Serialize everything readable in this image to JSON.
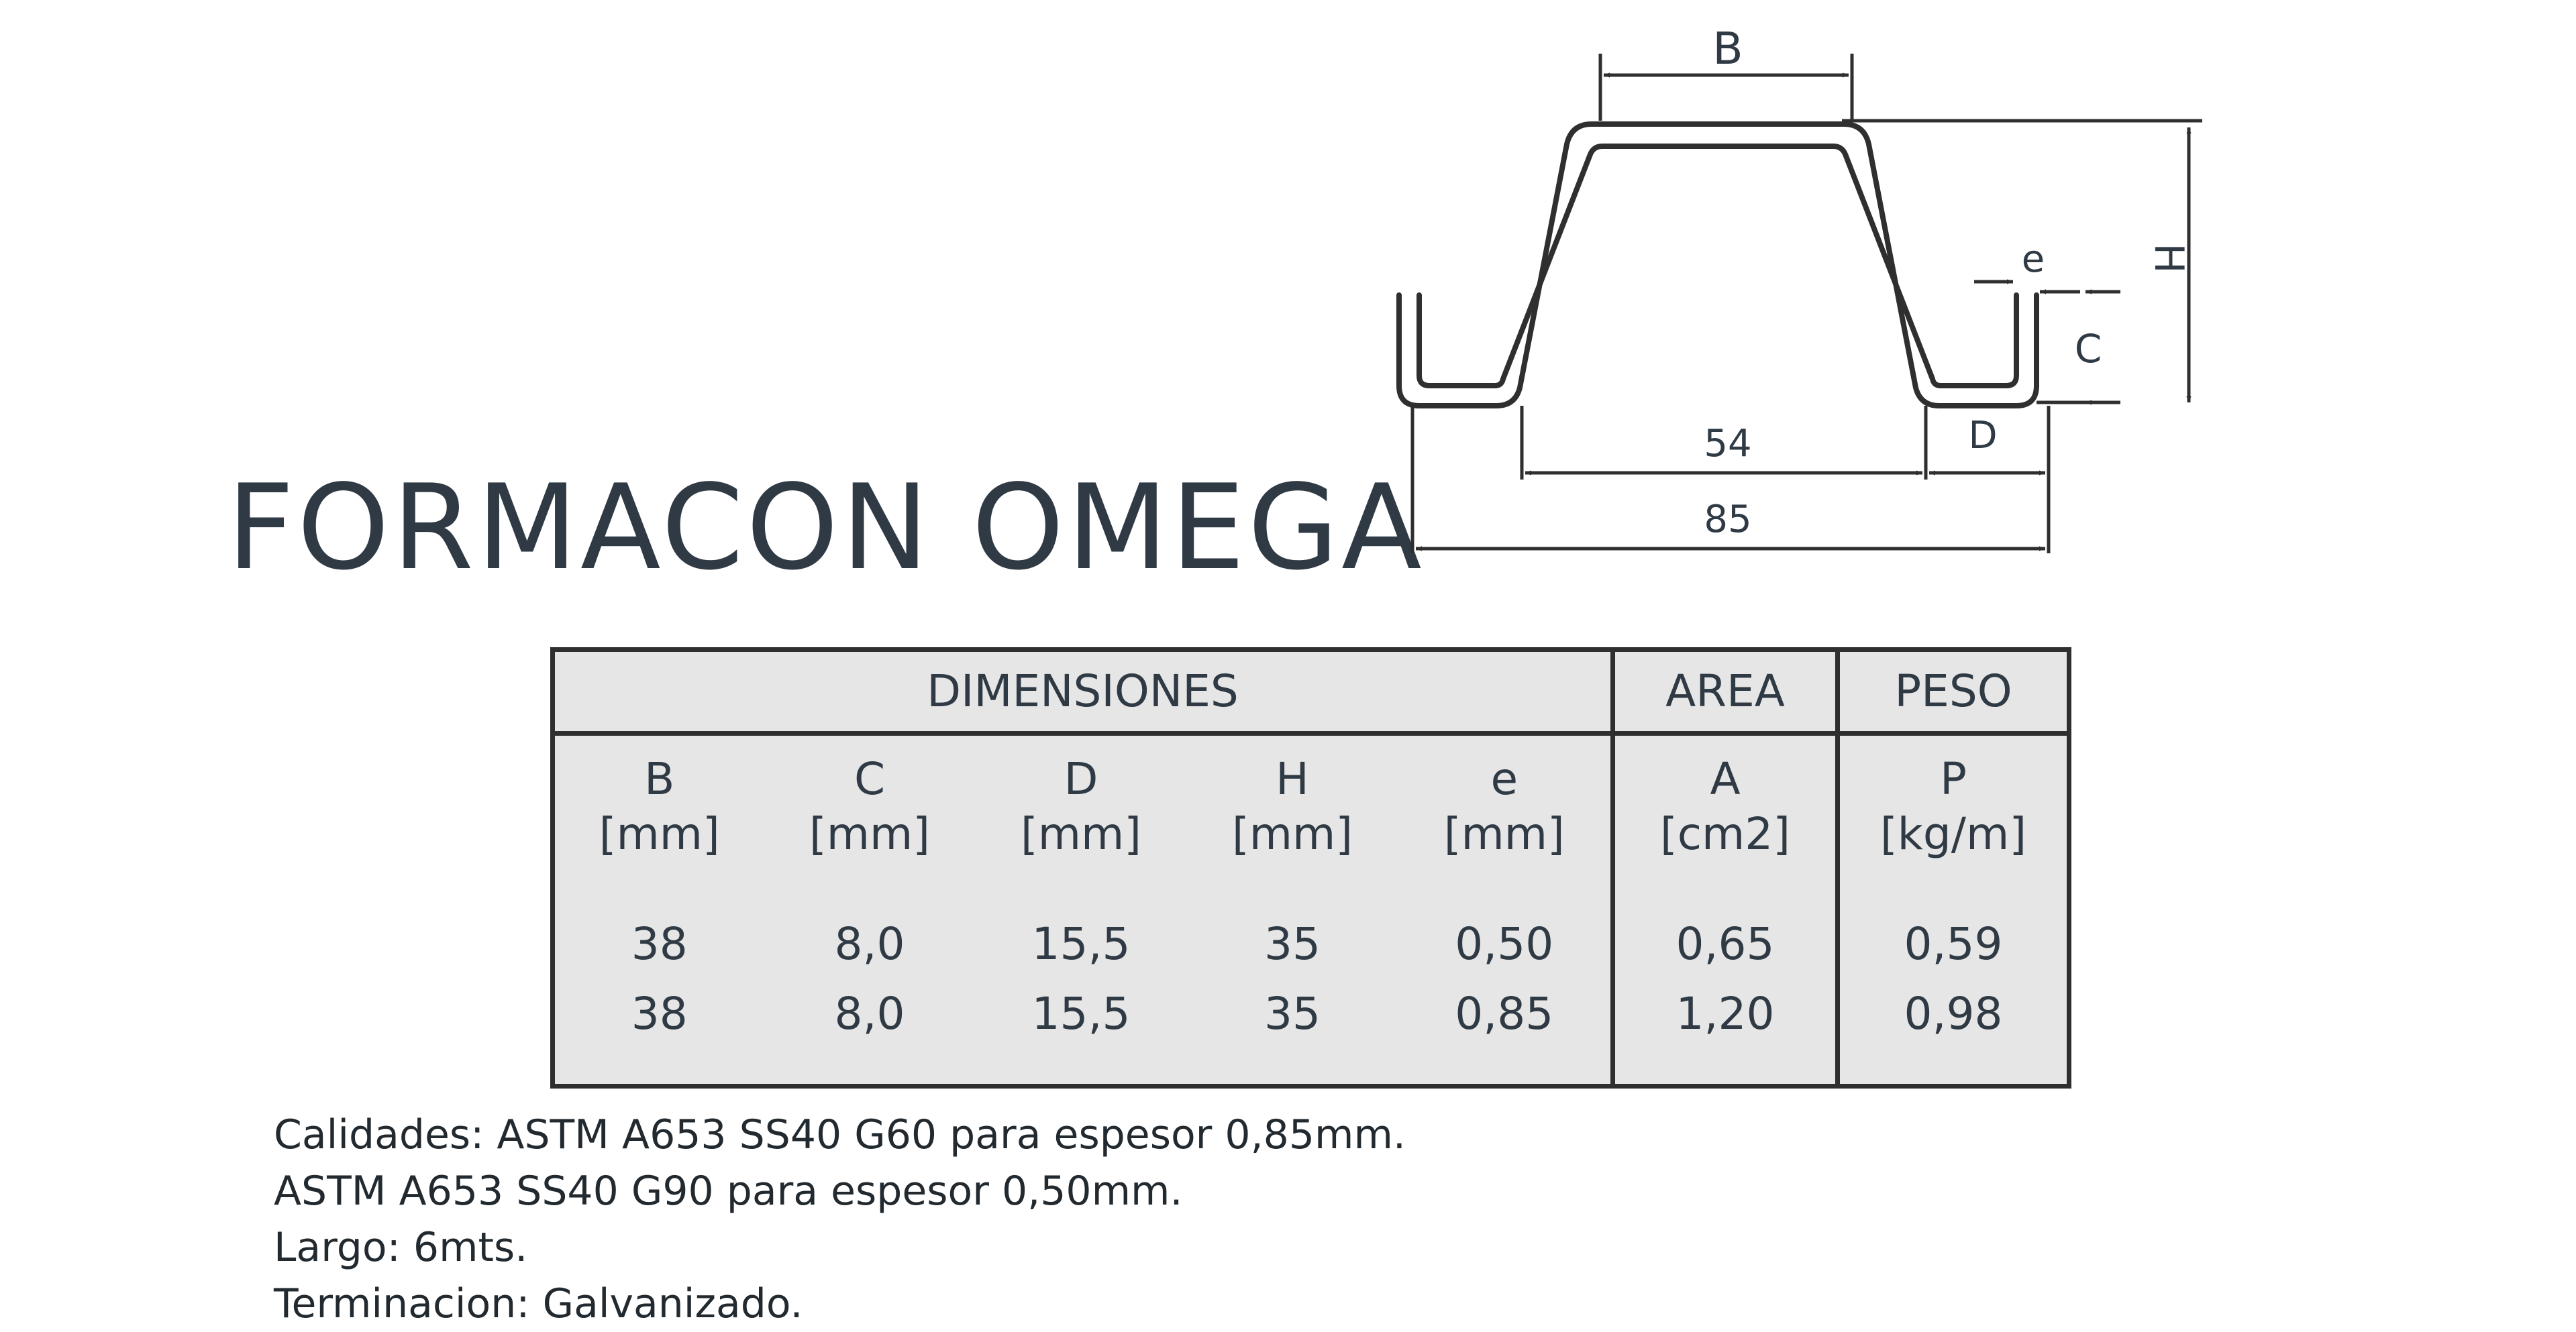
{
  "title": "FORMACON OMEGA",
  "drawing": {
    "label_B": "B",
    "label_H": "H",
    "label_e": "e",
    "label_C": "C",
    "label_D": "D",
    "label_54": "54",
    "label_85": "85"
  },
  "table": {
    "group_headers": {
      "dimensions": "DIMENSIONES",
      "area": "AREA",
      "weight": "PESO"
    },
    "columns": [
      {
        "symbol": "B",
        "unit": "[mm]"
      },
      {
        "symbol": "C",
        "unit": "[mm]"
      },
      {
        "symbol": "D",
        "unit": "[mm]"
      },
      {
        "symbol": "H",
        "unit": "[mm]"
      },
      {
        "symbol": "e",
        "unit": "[mm]"
      },
      {
        "symbol": "A",
        "unit": "[cm2]"
      },
      {
        "symbol": "P",
        "unit": "[kg/m]"
      }
    ],
    "rows": [
      [
        "38",
        "8,0",
        "15,5",
        "35",
        "0,50",
        "0,65",
        "0,59"
      ],
      [
        "38",
        "8,0",
        "15,5",
        "35",
        "0,85",
        "1,20",
        "0,98"
      ]
    ]
  },
  "notes": [
    "Calidades: ASTM A653 SS40 G60 para espesor 0,85mm.",
    "ASTM A653 SS40 G90 para espesor 0,50mm.",
    "Largo: 6mts.",
    "Terminacion: Galvanizado."
  ]
}
